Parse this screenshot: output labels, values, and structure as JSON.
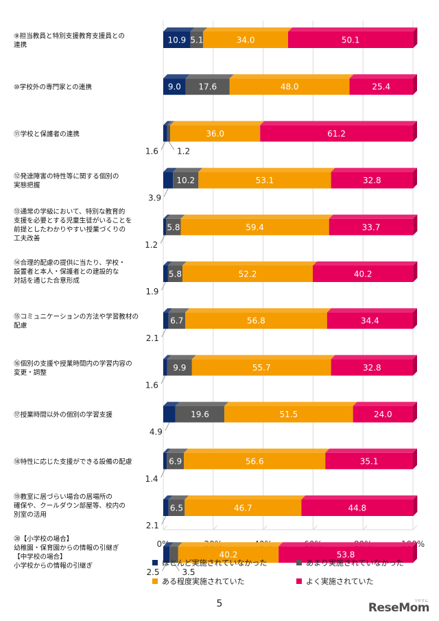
{
  "chart_data": {
    "type": "bar",
    "orientation": "horizontal",
    "stacked": true,
    "percent": true,
    "categories": [
      "⑨担当教員と特別支援教育支援員との\n連携",
      "⑩学校外の専門家との連携",
      "⑪学校と保護者の連携",
      "⑫発達障害の特性等に関する個別の\n実態把握",
      "⑬通常の学級において、特別な教育的\n支援を必要とする児童生徒がいることを\n前提としたわかりやすい授業づくりの\n工夫改善",
      "⑭合理的配慮の提供に当たり、学校・\n設置者と本人・保護者との建設的な\n対話を通じた合意形成",
      "⑮コミュニケーションの方法や学習教材の\n配慮",
      "⑯個別の支援や授業時間内の学習内容の\n変更・調整",
      "⑰授業時間以外の個別の学習支援",
      "⑱特性に応じた支援ができる設備の配慮",
      "⑲教室に居づらい場合の居場所の\n確保や、クールダウン部屋等、校内の\n別室の活用",
      "⑳【小学校の場合】\n幼稚園・保育園からの情報の引継ぎ\n【中学校の場合】\n小学校からの情報の引継ぎ"
    ],
    "series": [
      {
        "name": "ほとんど実施されていなかった",
        "color": "#0d2c6b",
        "values": [
          10.9,
          9.0,
          1.6,
          3.9,
          1.2,
          1.9,
          2.1,
          1.6,
          4.9,
          1.4,
          2.1,
          2.5
        ]
      },
      {
        "name": "あまり実施されていなかった",
        "color": "#595959",
        "values": [
          5.1,
          17.6,
          1.2,
          10.2,
          5.8,
          5.8,
          6.7,
          9.9,
          19.6,
          6.9,
          6.5,
          3.5
        ]
      },
      {
        "name": "ある程度実施されていた",
        "color": "#f59c00",
        "values": [
          34.0,
          48.0,
          36.0,
          53.1,
          59.4,
          52.2,
          56.8,
          55.7,
          51.5,
          56.6,
          46.7,
          40.2
        ]
      },
      {
        "name": "よく実施されていた",
        "color": "#e6005c",
        "values": [
          50.1,
          25.4,
          61.2,
          32.8,
          33.7,
          40.2,
          34.4,
          32.8,
          24.0,
          35.1,
          44.8,
          53.8
        ]
      }
    ],
    "outside_labels": [
      {
        "category": 2,
        "series": 0,
        "text": "1.6"
      },
      {
        "category": 2,
        "series": 1,
        "text": "1.2"
      },
      {
        "category": 3,
        "series": 0,
        "text": "3.9"
      },
      {
        "category": 4,
        "series": 0,
        "text": "1.2"
      },
      {
        "category": 5,
        "series": 0,
        "text": "1.9"
      },
      {
        "category": 6,
        "series": 0,
        "text": "2.1"
      },
      {
        "category": 7,
        "series": 0,
        "text": "1.6"
      },
      {
        "category": 8,
        "series": 0,
        "text": "4.9"
      },
      {
        "category": 9,
        "series": 0,
        "text": "1.4"
      },
      {
        "category": 10,
        "series": 0,
        "text": "2.1"
      },
      {
        "category": 11,
        "series": 0,
        "text": "2.5"
      },
      {
        "category": 11,
        "series": 1,
        "text": "3.5"
      }
    ],
    "xlim": [
      0,
      100
    ],
    "xticks": [
      "0%",
      "20%",
      "40%",
      "60%",
      "80%",
      "100%"
    ],
    "grid": true,
    "legend_position": "bottom"
  },
  "legend": {
    "items": [
      {
        "label": "ほとんど実施されていなかった",
        "color": "#0d2c6b"
      },
      {
        "label": "あまり実施されていなかった",
        "color": "#595959"
      },
      {
        "label": "ある程度実施されていた",
        "color": "#f59c00"
      },
      {
        "label": "よく実施されていた",
        "color": "#e6005c"
      }
    ]
  },
  "footer": {
    "page_number": "5",
    "logo_text_a": "Rese",
    "logo_text_b": "Mom",
    "logo_tm": "リセマム"
  }
}
